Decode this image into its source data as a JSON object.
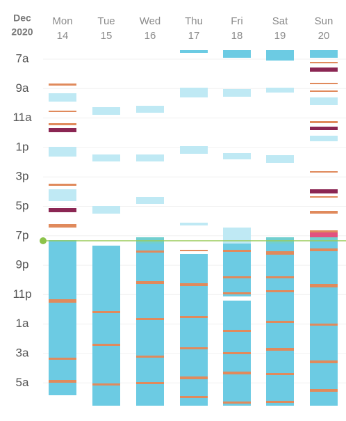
{
  "header": {
    "month": "Dec",
    "year": "2020"
  },
  "days": [
    {
      "name": "Mon",
      "date": "14"
    },
    {
      "name": "Tue",
      "date": "15"
    },
    {
      "name": "Wed",
      "date": "16"
    },
    {
      "name": "Thu",
      "date": "17"
    },
    {
      "name": "Fri",
      "date": "18"
    },
    {
      "name": "Sat",
      "date": "19"
    },
    {
      "name": "Sun",
      "date": "20"
    }
  ],
  "times": [
    "7a",
    "9a",
    "11a",
    "1p",
    "3p",
    "5p",
    "7p",
    "9p",
    "11p",
    "1a",
    "3a",
    "5a"
  ]
}
